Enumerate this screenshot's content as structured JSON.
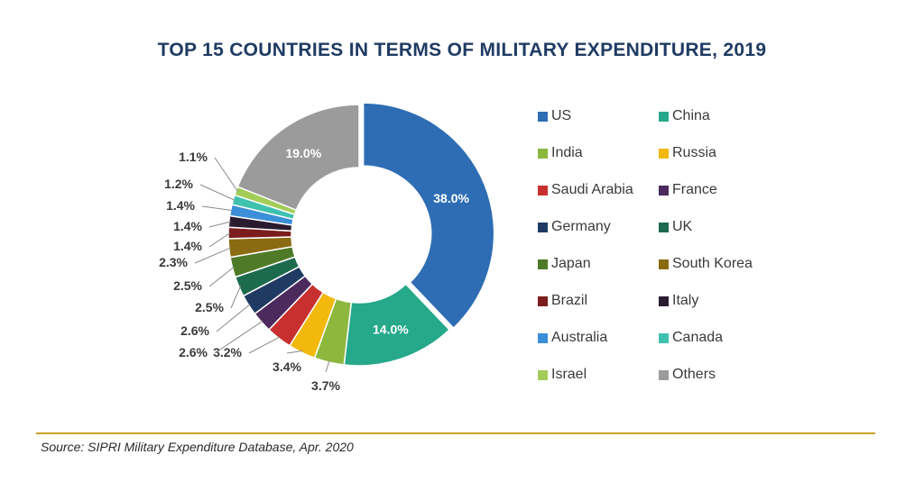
{
  "chart_data": {
    "type": "pie",
    "title": "TOP 15 COUNTRIES IN TERMS OF MILITARY EXPENDITURE, 2019",
    "donut": true,
    "legend_position": "right",
    "slices": [
      {
        "label": "US",
        "value": 38.0,
        "display": "38.0%",
        "color": "#2e6db4"
      },
      {
        "label": "China",
        "value": 14.0,
        "display": "14.0%",
        "color": "#25a98a"
      },
      {
        "label": "India",
        "value": 3.7,
        "display": "3.7%",
        "color": "#8cb83d"
      },
      {
        "label": "Russia",
        "value": 3.4,
        "display": "3.4%",
        "color": "#f2b80c"
      },
      {
        "label": "Saudi Arabia",
        "value": 3.2,
        "display": "3.2%",
        "color": "#c8302f"
      },
      {
        "label": "France",
        "value": 2.6,
        "display": "2.6%",
        "color": "#4c2a5e"
      },
      {
        "label": "Germany",
        "value": 2.6,
        "display": "2.6%",
        "color": "#1f3b63"
      },
      {
        "label": "UK",
        "value": 2.5,
        "display": "2.5%",
        "color": "#1c6b4e"
      },
      {
        "label": "Japan",
        "value": 2.5,
        "display": "2.5%",
        "color": "#4f7a28"
      },
      {
        "label": "South Korea",
        "value": 2.3,
        "display": "2.3%",
        "color": "#8a6b12"
      },
      {
        "label": "Brazil",
        "value": 1.4,
        "display": "1.4%",
        "color": "#7c1d1d"
      },
      {
        "label": "Italy",
        "value": 1.4,
        "display": "1.4%",
        "color": "#2a1b2f"
      },
      {
        "label": "Australia",
        "value": 1.4,
        "display": "1.4%",
        "color": "#3a8fd8"
      },
      {
        "label": "Canada",
        "value": 1.2,
        "display": "1.2%",
        "color": "#3fc1b0"
      },
      {
        "label": "Israel",
        "value": 1.1,
        "display": "1.1%",
        "color": "#a3cc5a"
      },
      {
        "label": "Others",
        "value": 19.0,
        "display": "19.0%",
        "color": "#9b9b9b"
      }
    ]
  },
  "source": "Source: SIPRI Military Expenditure Database, Apr. 2020"
}
